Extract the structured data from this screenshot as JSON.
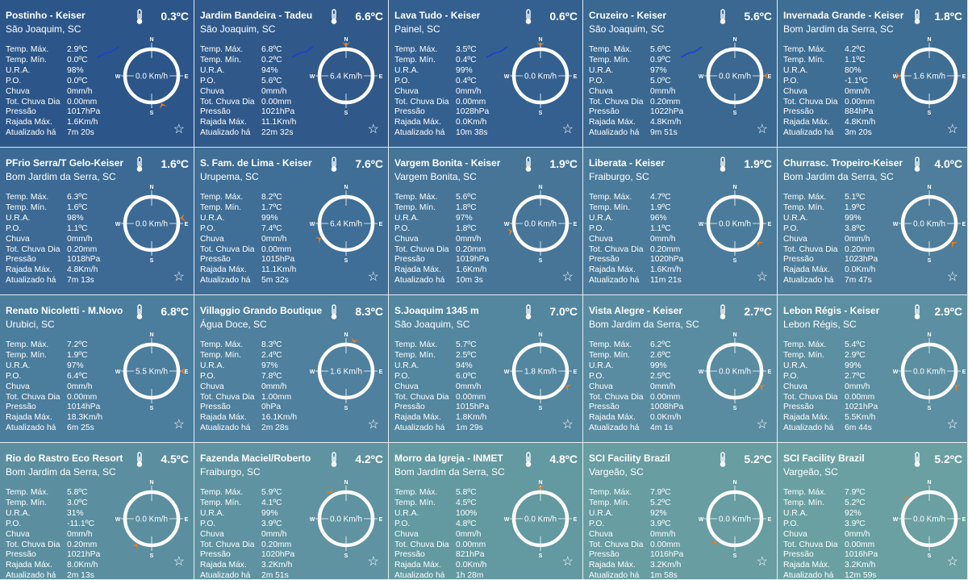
{
  "labels": {
    "tmax": "Temp. Máx.",
    "tmin": "Temp. Mín.",
    "ura": "U.R.A.",
    "po": "P.O.",
    "chuva": "Chuva",
    "totchuva": "Tot. Chuva Dia",
    "pressao": "Pressão",
    "rajada": "Rajada Máx.",
    "atualizado": "Atualizado há",
    "compass_n": "N",
    "compass_s": "S",
    "compass_e": "E",
    "compass_w": "W"
  },
  "colors": {
    "accent_arrow": "#f07d1a",
    "trend_line": "#1a3fd6",
    "ring": "#ffffff",
    "border": "#ffffff"
  },
  "icons": {
    "thermometer": "thermometer-icon",
    "favorite": "star-outline-icon",
    "wind": "wind-compass-icon"
  },
  "stations": [
    {
      "name": "Postinho - Keiser",
      "city": "São Joaquim, SC",
      "temp": "0.3ºC",
      "tmax": "2.9ºC",
      "tmin": "0.0ºC",
      "ura": "98%",
      "po": "0.0ºC",
      "chuva": "0mm/h",
      "totchuva": "0.00mm",
      "pressao": "1017hPa",
      "rajada": "1.6Km/h",
      "atualizado": "7m 20s",
      "wind": "0.0 Km/h",
      "dir_deg": 160,
      "trend": true
    },
    {
      "name": "Jardim Bandeira - Tadeu",
      "city": "São Joaquim, SC",
      "temp": "6.6ºC",
      "tmax": "6.8ºC",
      "tmin": "0.2ºC",
      "ura": "94%",
      "po": "5.6ºC",
      "chuva": "0mm/h",
      "totchuva": "0.00mm",
      "pressao": "1021hPa",
      "rajada": "11.1Km/h",
      "atualizado": "22m 32s",
      "wind": "6.4 Km/h",
      "dir_deg": 0,
      "trend": true
    },
    {
      "name": "Lava Tudo - Keiser",
      "city": "Painel, SC",
      "temp": "0.6ºC",
      "tmax": "3.5ºC",
      "tmin": "0.4ºC",
      "ura": "99%",
      "po": "0.4ºC",
      "chuva": "0mm/h",
      "totchuva": "0.00mm",
      "pressao": "1028hPa",
      "rajada": "0.0Km/h",
      "atualizado": "10m 38s",
      "wind": "0.0 Km/h",
      "dir_deg": 0,
      "trend": true
    },
    {
      "name": "Cruzeiro - Keiser",
      "city": "São Joaquim, SC",
      "temp": "5.6ºC",
      "tmax": "5.6ºC",
      "tmin": "0.9ºC",
      "ura": "97%",
      "po": "5.0ºC",
      "chuva": "0mm/h",
      "totchuva": "0.20mm",
      "pressao": "1022hPa",
      "rajada": "4.8Km/h",
      "atualizado": "9m 51s",
      "wind": "0.0 Km/h",
      "dir_deg": 90,
      "trend": true
    },
    {
      "name": "Invernada Grande - Keiser",
      "city": "Bom Jardim da Serra, SC",
      "temp": "1.8ºC",
      "tmax": "4.2ºC",
      "tmin": "1.1ºC",
      "ura": "80%",
      "po": "-1.1ºC",
      "chuva": "0mm/h",
      "totchuva": "0.00mm",
      "pressao": "884hPa",
      "rajada": "4.8Km/h",
      "atualizado": "3m 20s",
      "wind": "1.6 Km/h",
      "dir_deg": 270,
      "trend": false
    },
    {
      "name": "PFrio Serra/T Gelo-Keiser",
      "city": "Bom Jardim da Serra, SC",
      "temp": "1.6ºC",
      "tmax": "6.3ºC",
      "tmin": "1.6ºC",
      "ura": "98%",
      "po": "1.1ºC",
      "chuva": "0mm/h",
      "totchuva": "0.20mm",
      "pressao": "1018hPa",
      "rajada": "4.8Km/h",
      "atualizado": "7m 13s",
      "wind": "0.0 Km/h",
      "dir_deg": 80,
      "trend": false
    },
    {
      "name": "S. Fam. de Lima - Keiser",
      "city": "Urupema, SC",
      "temp": "7.6ºC",
      "tmax": "8.2ºC",
      "tmin": "1.7ºC",
      "ura": "99%",
      "po": "7.4ºC",
      "chuva": "0mm/h",
      "totchuva": "0.00mm",
      "pressao": "1015hPa",
      "rajada": "11.1Km/h",
      "atualizado": "5m 32s",
      "wind": "6.4 Km/h",
      "dir_deg": 240,
      "trend": false
    },
    {
      "name": "Vargem Bonita - Keiser",
      "city": "Vargem Bonita, SC",
      "temp": "1.9ºC",
      "tmax": "5.6ºC",
      "tmin": "1.8ºC",
      "ura": "97%",
      "po": "1.8ºC",
      "chuva": "0mm/h",
      "totchuva": "0.20mm",
      "pressao": "1019hPa",
      "rajada": "1.6Km/h",
      "atualizado": "10m 3s",
      "wind": "0.0 Km/h",
      "dir_deg": 255,
      "trend": false
    },
    {
      "name": "Liberata - Keiser",
      "city": "Fraiburgo, SC",
      "temp": "1.9ºC",
      "tmax": "4.7ºC",
      "tmin": "1.9ºC",
      "ura": "96%",
      "po": "1.1ºC",
      "chuva": "0mm/h",
      "totchuva": "0.20mm",
      "pressao": "1020hPa",
      "rajada": "1.6Km/h",
      "atualizado": "11m 21s",
      "wind": "0.0 Km/h",
      "dir_deg": 130,
      "trend": false
    },
    {
      "name": "Churrasc. Tropeiro-Keiser",
      "city": "Bom Jardim da Serra, SC",
      "temp": "4.0ºC",
      "tmax": "5.1ºC",
      "tmin": "1.9ºC",
      "ura": "99%",
      "po": "3.8ºC",
      "chuva": "0mm/h",
      "totchuva": "0.20mm",
      "pressao": "1023hPa",
      "rajada": "0.0Km/h",
      "atualizado": "7m 47s",
      "wind": "0.0 Km/h",
      "dir_deg": 130,
      "trend": false
    },
    {
      "name": "Renato Nicoletti - M.Novo",
      "city": "Urubici, SC",
      "temp": "6.8ºC",
      "tmax": "7.2ºC",
      "tmin": "1.9ºC",
      "ura": "97%",
      "po": "6.4ºC",
      "chuva": "0mm/h",
      "totchuva": "0.00mm",
      "pressao": "1014hPa",
      "rajada": "18.3Km/h",
      "atualizado": "6m 25s",
      "wind": "5.5 Km/h",
      "dir_deg": 90,
      "trend": false
    },
    {
      "name": "Villaggio Grando Boutique",
      "city": "Água Doce, SC",
      "temp": "8.3ºC",
      "tmax": "8.3ºC",
      "tmin": "2.4ºC",
      "ura": "97%",
      "po": "7.8ºC",
      "chuva": "0mm/h",
      "totchuva": "1.00mm",
      "pressao": "0hPa",
      "rajada": "16.1Km/h",
      "atualizado": "2m 28s",
      "wind": "1.6 Km/h",
      "dir_deg": 15,
      "trend": false
    },
    {
      "name": "S.Joaquim 1345 m",
      "city": "São Joaquim, SC",
      "temp": "7.0ºC",
      "tmax": "5.7ºC",
      "tmin": "2.5ºC",
      "ura": "94%",
      "po": "6.0ºC",
      "chuva": "0mm/h",
      "totchuva": "0.00mm",
      "pressao": "1015hPa",
      "rajada": "1.8Km/h",
      "atualizado": "1m 29s",
      "wind": "1.8 Km/h",
      "dir_deg": 120,
      "trend": false
    },
    {
      "name": "Vista Alegre - Keiser",
      "city": "Bom Jardim da Serra, SC",
      "temp": "2.7ºC",
      "tmax": "6.2ºC",
      "tmin": "2.6ºC",
      "ura": "99%",
      "po": "2.5ºC",
      "chuva": "0mm/h",
      "totchuva": "0.00mm",
      "pressao": "1008hPa",
      "rajada": "0.0Km/h",
      "atualizado": "4m 1s",
      "wind": "0.0 Km/h",
      "dir_deg": 120,
      "trend": false
    },
    {
      "name": "Lebon Régis - Keiser",
      "city": "Lebon Régis, SC",
      "temp": "2.9ºC",
      "tmax": "5.4ºC",
      "tmin": "2.9ºC",
      "ura": "99%",
      "po": "2.7ºC",
      "chuva": "0mm/h",
      "totchuva": "0.00mm",
      "pressao": "1021hPa",
      "rajada": "5.5Km/h",
      "atualizado": "6m 44s",
      "wind": "0.0 Km/h",
      "dir_deg": 120,
      "trend": false
    },
    {
      "name": "Rio do Rastro Eco Resort",
      "city": "Bom Jardim da Serra, SC",
      "temp": "4.5ºC",
      "tmax": "5.8ºC",
      "tmin": "3.0ºC",
      "ura": "31%",
      "po": "-11.1ºC",
      "chuva": "0mm/h",
      "totchuva": "0.20mm",
      "pressao": "1021hPa",
      "rajada": "8.0Km/h",
      "atualizado": "2m 13s",
      "wind": "0.0 Km/h",
      "dir_deg": 210,
      "trend": false
    },
    {
      "name": "Fazenda Maciel/Roberto",
      "city": "Fraiburgo, SC",
      "temp": "4.2ºC",
      "tmax": "5.9ºC",
      "tmin": "4.1ºC",
      "ura": "99%",
      "po": "3.9ºC",
      "chuva": "0mm/h",
      "totchuva": "0.20mm",
      "pressao": "1020hPa",
      "rajada": "3.2Km/h",
      "atualizado": "2m 51s",
      "wind": "0.0 Km/h",
      "dir_deg": 330,
      "trend": false
    },
    {
      "name": "Morro da Igreja - INMET",
      "city": "Bom Jardim da Serra, SC",
      "temp": "4.8ºC",
      "tmax": "5.8ºC",
      "tmin": "4.5ºC",
      "ura": "100%",
      "po": "4.8ºC",
      "chuva": "0mm/h",
      "totchuva": "0.00mm",
      "pressao": "821hPa",
      "rajada": "0.0Km/h",
      "atualizado": "1h 28m",
      "wind": "0.0 Km/h",
      "dir_deg": 0,
      "trend": false
    },
    {
      "name": "SCI Facility Brazil",
      "city": "Vargeão, SC",
      "temp": "5.2ºC",
      "tmax": "7.9ºC",
      "tmin": "5.2ºC",
      "ura": "92%",
      "po": "3.9ºC",
      "chuva": "0mm/h",
      "totchuva": "0.00mm",
      "pressao": "1016hPa",
      "rajada": "3.2Km/h",
      "atualizado": "1m 58s",
      "wind": "0.0 Km/h",
      "dir_deg": 220,
      "trend": false
    },
    {
      "name": "SCI Facility Brazil",
      "city": "Vargeão, SC",
      "temp": "5.2ºC",
      "tmax": "7.9ºC",
      "tmin": "5.2ºC",
      "ura": "92%",
      "po": "3.9ºC",
      "chuva": "0mm/h",
      "totchuva": "0.00mm",
      "pressao": "1016hPa",
      "rajada": "3.2Km/h",
      "atualizado": "12m 59s",
      "wind": "0.0 Km/h",
      "dir_deg": 310,
      "trend": false
    }
  ]
}
